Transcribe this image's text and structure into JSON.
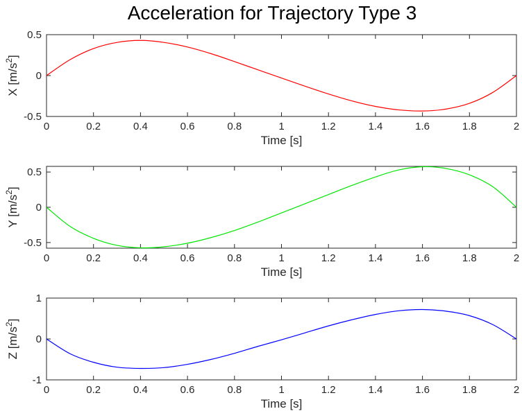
{
  "figure_title": "Acceleration for Trajectory Type 3",
  "chart_data": [
    {
      "type": "line",
      "xlabel": "Time [s]",
      "ylabel": "X [m/s²]",
      "xlim": [
        0,
        2
      ],
      "ylim": [
        -0.5,
        0.5
      ],
      "x_ticks": [
        "0",
        "0.2",
        "0.4",
        "0.6",
        "0.8",
        "1",
        "1.2",
        "1.4",
        "1.6",
        "1.8",
        "2"
      ],
      "y_ticks": [
        "-0.5",
        "0",
        "0.5"
      ],
      "grid": false,
      "series": [
        {
          "color": "#ff0000",
          "x": [
            0,
            0.1,
            0.2,
            0.3,
            0.4,
            0.5,
            0.6,
            0.7,
            0.8,
            0.9,
            1.0,
            1.1,
            1.2,
            1.3,
            1.4,
            1.5,
            1.6,
            1.7,
            1.8,
            1.9,
            2.0
          ],
          "y": [
            0,
            0.194,
            0.33,
            0.405,
            0.43,
            0.405,
            0.349,
            0.268,
            0.171,
            0.07,
            -0.03,
            -0.13,
            -0.225,
            -0.31,
            -0.377,
            -0.42,
            -0.433,
            -0.41,
            -0.34,
            -0.205,
            0
          ]
        }
      ]
    },
    {
      "type": "line",
      "xlabel": "Time [s]",
      "ylabel": "Y [m/s²]",
      "xlim": [
        0,
        2
      ],
      "ylim": [
        -0.58,
        0.58
      ],
      "x_ticks": [
        "0",
        "0.2",
        "0.4",
        "0.6",
        "0.8",
        "1",
        "1.2",
        "1.4",
        "1.6",
        "1.8",
        "2"
      ],
      "y_ticks": [
        "-0.5",
        "0",
        "0.5"
      ],
      "grid": false,
      "series": [
        {
          "color": "#00e600",
          "x": [
            0,
            0.1,
            0.2,
            0.3,
            0.4,
            0.5,
            0.6,
            0.7,
            0.8,
            0.9,
            1.0,
            1.1,
            1.2,
            1.3,
            1.4,
            1.5,
            1.6,
            1.7,
            1.8,
            1.9,
            2.0
          ],
          "y": [
            0,
            -0.27,
            -0.44,
            -0.54,
            -0.575,
            -0.56,
            -0.51,
            -0.43,
            -0.33,
            -0.21,
            -0.08,
            0.05,
            0.18,
            0.31,
            0.43,
            0.53,
            0.575,
            0.55,
            0.46,
            0.29,
            0
          ]
        }
      ]
    },
    {
      "type": "line",
      "xlabel": "Time [s]",
      "ylabel": "Z [m/s²]",
      "xlim": [
        0,
        2
      ],
      "ylim": [
        -1,
        1
      ],
      "x_ticks": [
        "0",
        "0.2",
        "0.4",
        "0.6",
        "0.8",
        "1",
        "1.2",
        "1.4",
        "1.6",
        "1.8",
        "2"
      ],
      "y_ticks": [
        "-1",
        "0",
        "1"
      ],
      "grid": false,
      "series": [
        {
          "color": "#0000ff",
          "x": [
            0,
            0.1,
            0.2,
            0.3,
            0.4,
            0.5,
            0.6,
            0.7,
            0.8,
            0.9,
            1.0,
            1.1,
            1.2,
            1.3,
            1.4,
            1.5,
            1.6,
            1.7,
            1.8,
            1.9,
            2.0
          ],
          "y": [
            0,
            -0.36,
            -0.57,
            -0.69,
            -0.72,
            -0.7,
            -0.62,
            -0.5,
            -0.35,
            -0.18,
            -0.02,
            0.15,
            0.32,
            0.47,
            0.6,
            0.69,
            0.72,
            0.68,
            0.57,
            0.35,
            0
          ]
        }
      ]
    }
  ]
}
